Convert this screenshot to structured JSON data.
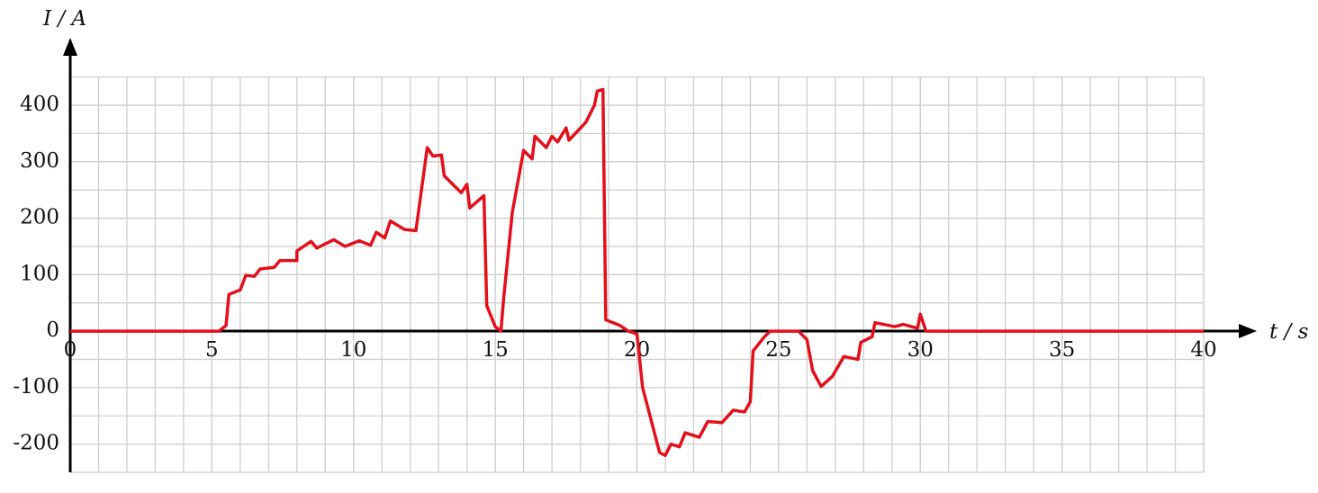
{
  "chart_data": {
    "type": "line",
    "x_label": "t / s",
    "y_label": "I / A",
    "xlim": [
      0,
      40
    ],
    "ylim": [
      -250,
      450
    ],
    "xticks": [
      0,
      5,
      10,
      15,
      20,
      25,
      30,
      35,
      40
    ],
    "yticks": [
      -200,
      -100,
      0,
      100,
      200,
      300,
      400
    ],
    "grid": true,
    "series": [
      {
        "color": "#e3101c",
        "x": [
          0,
          5.25,
          5.5,
          5.6,
          6.0,
          6.2,
          6.5,
          6.7,
          7.2,
          7.4,
          8.0,
          8.0,
          8.5,
          8.7,
          9.3,
          9.7,
          10.2,
          10.6,
          10.8,
          11.1,
          11.3,
          11.8,
          12.2,
          12.6,
          12.8,
          13.1,
          13.2,
          13.8,
          14.0,
          14.1,
          14.6,
          14.7,
          15.0,
          15.2,
          15.3,
          15.6,
          16.0,
          16.3,
          16.4,
          16.8,
          17.0,
          17.2,
          17.5,
          17.6,
          18.2,
          18.5,
          18.6,
          18.8,
          18.9,
          19.4,
          19.7,
          20.0,
          20.2,
          20.8,
          21.0,
          21.2,
          21.5,
          21.7,
          22.2,
          22.5,
          23.0,
          23.4,
          23.8,
          24.0,
          24.1,
          24.5,
          24.7,
          25.7,
          26.0,
          26.2,
          26.5,
          26.9,
          27.3,
          27.8,
          27.9,
          28.3,
          28.4,
          29.1,
          29.4,
          29.9,
          30.0,
          30.2,
          40
        ],
        "values": [
          0,
          0,
          10,
          65,
          73,
          99,
          97,
          110,
          113,
          125,
          125,
          142,
          159,
          147,
          162,
          150,
          160,
          152,
          175,
          165,
          195,
          180,
          178,
          325,
          310,
          312,
          275,
          245,
          260,
          218,
          240,
          45,
          8,
          0,
          60,
          210,
          320,
          305,
          345,
          325,
          345,
          335,
          360,
          338,
          370,
          400,
          425,
          428,
          20,
          10,
          0,
          -5,
          -100,
          -215,
          -220,
          -200,
          -205,
          -180,
          -188,
          -160,
          -162,
          -140,
          -143,
          -125,
          -35,
          -10,
          0,
          0,
          -15,
          -70,
          -98,
          -80,
          -45,
          -50,
          -20,
          -10,
          15,
          8,
          12,
          5,
          30,
          0,
          0
        ]
      }
    ]
  }
}
